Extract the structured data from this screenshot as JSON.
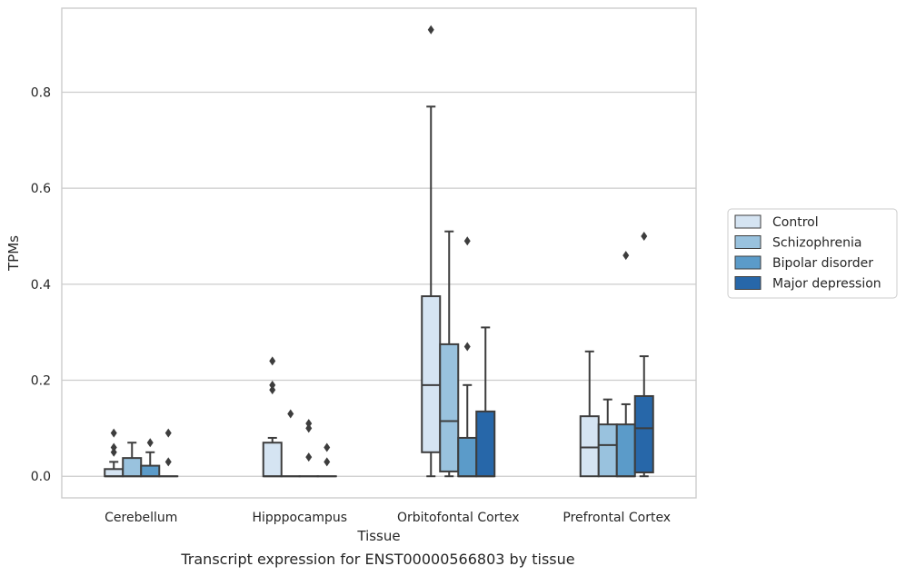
{
  "caption": "Transcript expression for ENST00000566803 by tissue",
  "chart_data": {
    "type": "boxplot",
    "xlabel": "Tissue",
    "ylabel": "TPMs",
    "ylim": [
      -0.045,
      0.975
    ],
    "yticks": [
      0.0,
      0.2,
      0.4,
      0.6,
      0.8
    ],
    "ytick_labels": [
      "0.0",
      "0.2",
      "0.4",
      "0.6",
      "0.8"
    ],
    "grid": "horizontal",
    "legend_position": "right",
    "categories": [
      "Cerebellum",
      "Hipppocampus",
      "Orbitofontal Cortex",
      "Prefrontal Cortex"
    ],
    "series": [
      {
        "name": "Control",
        "color": "#d5e4f2",
        "boxes": [
          {
            "q1": 0.0,
            "median": 0.0,
            "q3": 0.015,
            "whislo": 0.0,
            "whishi": 0.03,
            "fliers": [
              0.05,
              0.06,
              0.09
            ]
          },
          {
            "q1": 0.0,
            "median": 0.0,
            "q3": 0.07,
            "whislo": 0.0,
            "whishi": 0.08,
            "fliers": [
              0.18,
              0.19,
              0.24
            ]
          },
          {
            "q1": 0.05,
            "median": 0.19,
            "q3": 0.375,
            "whislo": 0.0,
            "whishi": 0.77,
            "fliers": [
              0.93
            ]
          },
          {
            "q1": 0.0,
            "median": 0.06,
            "q3": 0.125,
            "whislo": 0.0,
            "whishi": 0.26,
            "fliers": []
          }
        ]
      },
      {
        "name": "Schizophrenia",
        "color": "#99c2de",
        "boxes": [
          {
            "q1": 0.0,
            "median": 0.0,
            "q3": 0.038,
            "whislo": 0.0,
            "whishi": 0.07,
            "fliers": []
          },
          {
            "q1": 0.0,
            "median": 0.0,
            "q3": 0.0,
            "whislo": 0.0,
            "whishi": 0.0,
            "fliers": [
              0.13
            ]
          },
          {
            "q1": 0.01,
            "median": 0.115,
            "q3": 0.275,
            "whislo": 0.0,
            "whishi": 0.51,
            "fliers": []
          },
          {
            "q1": 0.0,
            "median": 0.065,
            "q3": 0.108,
            "whislo": 0.0,
            "whishi": 0.16,
            "fliers": []
          }
        ]
      },
      {
        "name": "Bipolar disorder",
        "color": "#5b9bc9",
        "boxes": [
          {
            "q1": 0.0,
            "median": 0.0,
            "q3": 0.022,
            "whislo": 0.0,
            "whishi": 0.05,
            "fliers": [
              0.07
            ]
          },
          {
            "q1": 0.0,
            "median": 0.0,
            "q3": 0.0,
            "whislo": 0.0,
            "whishi": 0.0,
            "fliers": [
              0.04,
              0.1,
              0.11
            ]
          },
          {
            "q1": 0.0,
            "median": 0.0,
            "q3": 0.08,
            "whislo": 0.0,
            "whishi": 0.19,
            "fliers": [
              0.27,
              0.49
            ]
          },
          {
            "q1": 0.0,
            "median": 0.0,
            "q3": 0.108,
            "whislo": 0.0,
            "whishi": 0.15,
            "fliers": [
              0.46
            ]
          }
        ]
      },
      {
        "name": "Major depression",
        "color": "#2767a9",
        "boxes": [
          {
            "q1": 0.0,
            "median": 0.0,
            "q3": 0.0,
            "whislo": 0.0,
            "whishi": 0.0,
            "fliers": [
              0.03,
              0.09
            ]
          },
          {
            "q1": 0.0,
            "median": 0.0,
            "q3": 0.0,
            "whislo": 0.0,
            "whishi": 0.0,
            "fliers": [
              0.03,
              0.06
            ]
          },
          {
            "q1": 0.0,
            "median": 0.0,
            "q3": 0.135,
            "whislo": 0.0,
            "whishi": 0.31,
            "fliers": []
          },
          {
            "q1": 0.008,
            "median": 0.1,
            "q3": 0.167,
            "whislo": 0.0,
            "whishi": 0.25,
            "fliers": [
              0.5
            ]
          }
        ]
      }
    ]
  }
}
